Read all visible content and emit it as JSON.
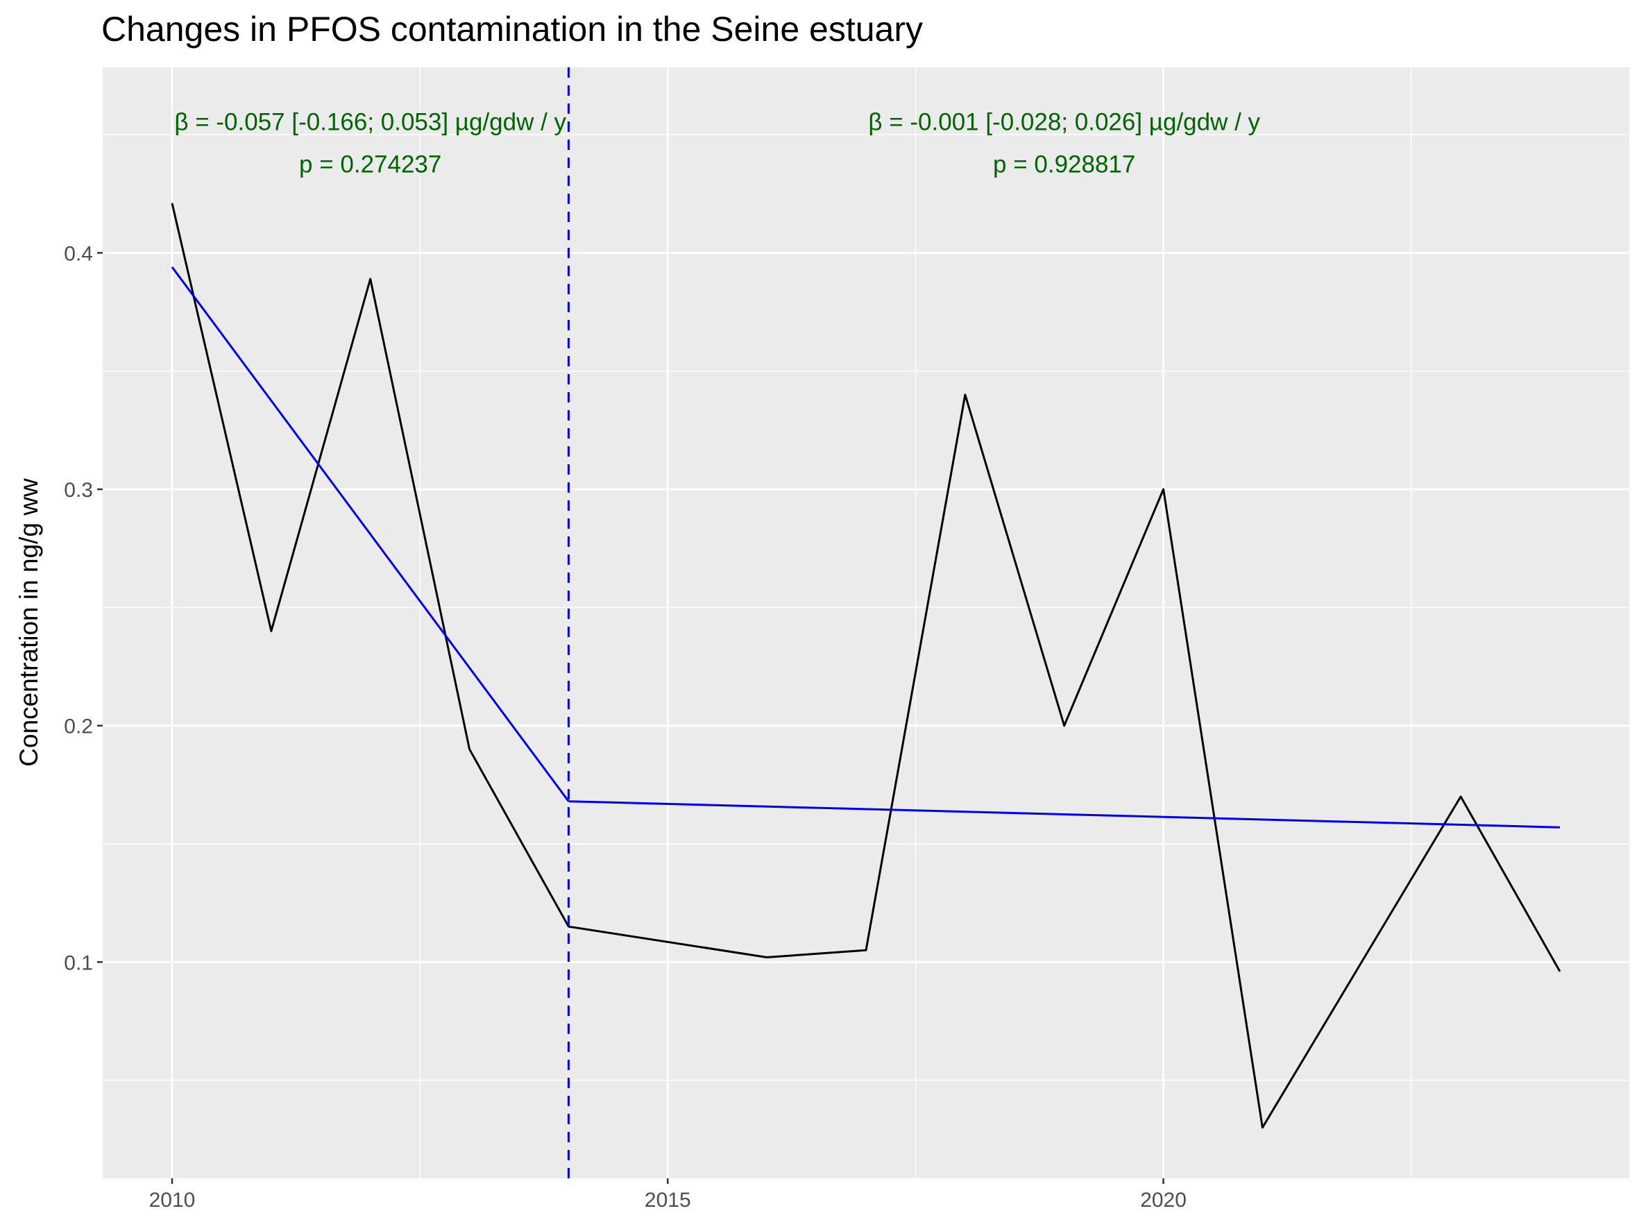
{
  "chart_data": {
    "type": "line",
    "title": "Changes in PFOS contamination in the Seine estuary",
    "xlabel": "",
    "ylabel": "Concentration in ng/g ww",
    "xlim": [
      2009.3,
      2024.7
    ],
    "ylim": [
      0.0085,
      0.4785
    ],
    "x_ticks": [
      2010,
      2015,
      2020
    ],
    "x_tick_labels": [
      "2010",
      "2015",
      "2020"
    ],
    "y_ticks": [
      0.1,
      0.2,
      0.3,
      0.4
    ],
    "y_tick_labels": [
      "0.1",
      "0.2",
      "0.3",
      "0.4"
    ],
    "grid": true,
    "series": [
      {
        "color": "#000000",
        "x": [
          2010,
          2011,
          2012,
          2013,
          2014,
          2016,
          2017,
          2018,
          2019,
          2020,
          2021,
          2023,
          2024
        ],
        "values": [
          0.421,
          0.24,
          0.389,
          0.19,
          0.115,
          0.102,
          0.105,
          0.34,
          0.2,
          0.3,
          0.03,
          0.17,
          0.096
        ]
      },
      {
        "color": "#0000ee",
        "x": [
          2010,
          2014
        ],
        "values": [
          0.394,
          0.168
        ]
      },
      {
        "color": "#0000ee",
        "x": [
          2014,
          2024
        ],
        "values": [
          0.168,
          0.157
        ]
      }
    ],
    "vline": {
      "x": 2014,
      "color": "#0000ee",
      "style": "dashed"
    },
    "annotations": [
      {
        "x": 2012,
        "y": 0.4555,
        "text": "β = -0.057 [-0.166; 0.053] µg/gdw / y",
        "color": "#006400"
      },
      {
        "x": 2012,
        "y": 0.4375,
        "text": "p = 0.274237",
        "color": "#006400"
      },
      {
        "x": 2019,
        "y": 0.4555,
        "text": "β = -0.001 [-0.028; 0.026] µg/gdw / y",
        "color": "#006400"
      },
      {
        "x": 2019,
        "y": 0.4375,
        "text": "p = 0.928817",
        "color": "#006400"
      }
    ],
    "colors": {
      "panel": "#ebebeb",
      "grid": "#ffffff",
      "tick_text": "#4d4d4d"
    }
  }
}
